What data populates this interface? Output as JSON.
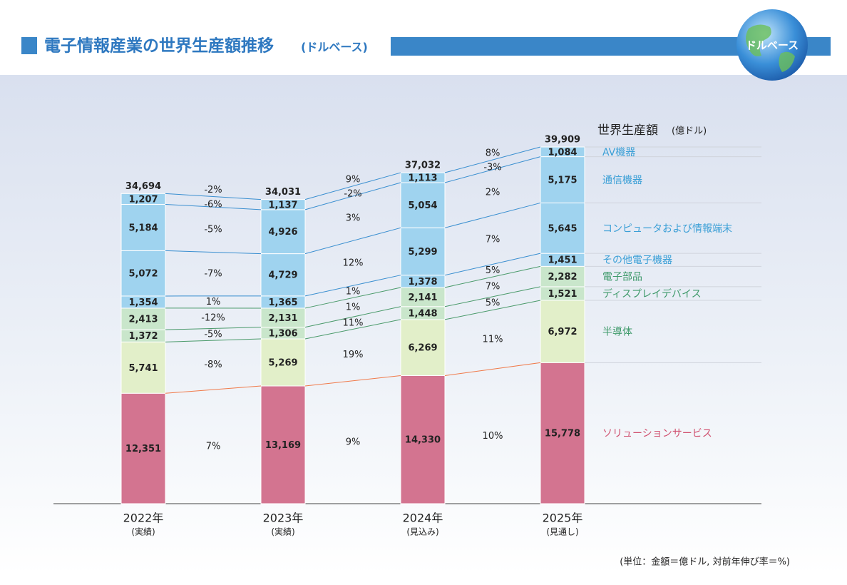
{
  "chart_data": {
    "type": "bar",
    "stacked": true,
    "title": "電子情報産業の世界生産額推移",
    "subtitle": "(ドルベース)",
    "badge": "ドルベース",
    "axis_title": "世界生産額",
    "axis_unit": "(億ドル)",
    "footnote": "(単位：金額＝億ドル, 対前年伸び率＝%)",
    "categories": [
      "2022年",
      "2023年",
      "2024年",
      "2025年"
    ],
    "category_notes": [
      "(実績)",
      "(実績)",
      "(見込み)",
      "(見通し)"
    ],
    "totals": [
      34694,
      34031,
      37032,
      39909
    ],
    "total_labels": [
      "34,694",
      "34,031",
      "37,032",
      "39,909"
    ],
    "total_growth": [
      -2,
      9,
      8
    ],
    "total_growth_labels": [
      "-2%",
      "9%",
      "8%"
    ],
    "series": [
      {
        "name": "ソリューションサービス",
        "color": "#d37490",
        "label_color": "#d0506f",
        "line_color": "#f07a4a",
        "values": [
          12351,
          13169,
          14330,
          15778
        ],
        "value_labels": [
          "12,351",
          "13,169",
          "14,330",
          "15,778"
        ],
        "growth": [
          7,
          9,
          10
        ],
        "growth_labels": [
          "7%",
          "9%",
          "10%"
        ]
      },
      {
        "name": "半導体",
        "color": "#e2efc9",
        "label_color": "#3f9a6b",
        "line_color": "#4a9a6a",
        "values": [
          5741,
          5269,
          6269,
          6972
        ],
        "value_labels": [
          "5,741",
          "5,269",
          "6,269",
          "6,972"
        ],
        "growth": [
          -8,
          19,
          11
        ],
        "growth_labels": [
          "-8%",
          "19%",
          "11%"
        ]
      },
      {
        "name": "ディスプレイデバイス",
        "color": "#c9e6cb",
        "label_color": "#3f9a6b",
        "line_color": "#4a9a6a",
        "values": [
          1372,
          1306,
          1448,
          1521
        ],
        "value_labels": [
          "1,372",
          "1,306",
          "1,448",
          "1,521"
        ],
        "growth": [
          -5,
          11,
          5
        ],
        "growth_labels": [
          "-5%",
          "11%",
          "5%"
        ]
      },
      {
        "name": "電子部品",
        "color": "#c9e6cb",
        "label_color": "#3f9a6b",
        "line_color": "#4a9a6a",
        "values": [
          2413,
          2131,
          2141,
          2282
        ],
        "value_labels": [
          "2,413",
          "2,131",
          "2,141",
          "2,282"
        ],
        "growth": [
          -12,
          1,
          7
        ],
        "growth_labels": [
          "-12%",
          "1%",
          "7%"
        ]
      },
      {
        "name": "その他電子機器",
        "color": "#9fd3ef",
        "label_color": "#3a9fd6",
        "line_color": "#3a8fd0",
        "values": [
          1354,
          1365,
          1378,
          1451
        ],
        "value_labels": [
          "1,354",
          "1,365",
          "1,378",
          "1,451"
        ],
        "growth": [
          1,
          1,
          5
        ],
        "growth_labels": [
          "1%",
          "1%",
          "5%"
        ]
      },
      {
        "name": "コンピュータおよび情報端末",
        "color": "#9fd3ef",
        "label_color": "#3a9fd6",
        "line_color": "#3a8fd0",
        "values": [
          5072,
          4729,
          5299,
          5645
        ],
        "value_labels": [
          "5,072",
          "4,729",
          "5,299",
          "5,645"
        ],
        "growth": [
          -7,
          12,
          7
        ],
        "growth_labels": [
          "-7%",
          "12%",
          "7%"
        ]
      },
      {
        "name": "通信機器",
        "color": "#9fd3ef",
        "label_color": "#3a9fd6",
        "line_color": "#3a8fd0",
        "values": [
          5184,
          4926,
          5054,
          5175
        ],
        "value_labels": [
          "5,184",
          "4,926",
          "5,054",
          "5,175"
        ],
        "growth": [
          -5,
          3,
          2
        ],
        "growth_labels": [
          "-5%",
          "3%",
          "2%"
        ]
      },
      {
        "name": "AV機器",
        "color": "#9fd3ef",
        "label_color": "#3a9fd6",
        "line_color": "#3a8fd0",
        "values": [
          1207,
          1137,
          1113,
          1084
        ],
        "value_labels": [
          "1,207",
          "1,137",
          "1,113",
          "1,084"
        ],
        "growth": [
          -6,
          -2,
          -3
        ],
        "growth_labels": [
          "-6%",
          "-2%",
          "-3%"
        ]
      }
    ]
  }
}
